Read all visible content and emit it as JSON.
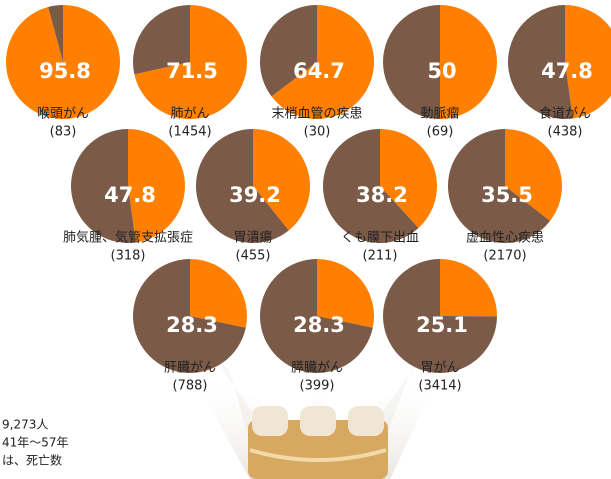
{
  "chart_data": [
    {
      "type": "pie",
      "title": "喉頭がん",
      "subtitle": "(83)",
      "values": [
        95.8,
        4.2
      ],
      "colors": [
        "#ff8000",
        "#7b5a48"
      ]
    },
    {
      "type": "pie",
      "title": "肺がん",
      "subtitle": "(1454)",
      "values": [
        71.5,
        28.5
      ],
      "colors": [
        "#ff8000",
        "#7b5a48"
      ]
    },
    {
      "type": "pie",
      "title": "末梢血管の疾患",
      "subtitle": "(30)",
      "values": [
        64.7,
        35.3
      ],
      "colors": [
        "#ff8000",
        "#7b5a48"
      ]
    },
    {
      "type": "pie",
      "title": "動脈瘤",
      "subtitle": "(69)",
      "values": [
        50.0,
        50.0
      ],
      "colors": [
        "#ff8000",
        "#7b5a48"
      ]
    },
    {
      "type": "pie",
      "title": "食道がん",
      "subtitle": "(438)",
      "values": [
        47.8,
        52.2
      ],
      "colors": [
        "#ff8000",
        "#7b5a48"
      ]
    },
    {
      "type": "pie",
      "title": "肺気腫、気管支拡張症",
      "subtitle": "(318)",
      "values": [
        47.8,
        52.2
      ],
      "colors": [
        "#ff8000",
        "#7b5a48"
      ]
    },
    {
      "type": "pie",
      "title": "胃潰瘍",
      "subtitle": "(455)",
      "values": [
        39.2,
        60.8
      ],
      "colors": [
        "#ff8000",
        "#7b5a48"
      ]
    },
    {
      "type": "pie",
      "title": "くも膜下出血",
      "subtitle": "(211)",
      "values": [
        38.2,
        61.8
      ],
      "colors": [
        "#ff8000",
        "#7b5a48"
      ]
    },
    {
      "type": "pie",
      "title": "虚血性心疾患",
      "subtitle": "(2170)",
      "values": [
        35.5,
        64.5
      ],
      "colors": [
        "#ff8000",
        "#7b5a48"
      ]
    },
    {
      "type": "pie",
      "title": "肝臓がん",
      "subtitle": "(788)",
      "values": [
        28.3,
        71.7
      ],
      "colors": [
        "#ff8000",
        "#7b5a48"
      ]
    },
    {
      "type": "pie",
      "title": "膵臓がん",
      "subtitle": "(399)",
      "values": [
        28.3,
        71.7
      ],
      "colors": [
        "#ff8000",
        "#7b5a48"
      ]
    },
    {
      "type": "pie",
      "title": "胃がん",
      "subtitle": "(3414)",
      "values": [
        25.1,
        74.9
      ],
      "colors": [
        "#ff8000",
        "#7b5a48"
      ]
    }
  ],
  "notes": [
    "9,273人",
    "41年〜57年",
    "は、死亡数"
  ]
}
